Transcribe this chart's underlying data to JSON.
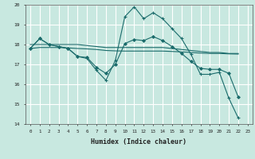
{
  "bg_color": "#c8e8e0",
  "grid_color": "#ffffff",
  "line_color": "#1a6b6b",
  "xlim": [
    -0.5,
    23.5
  ],
  "ylim": [
    14,
    20
  ],
  "xlabel": "Humidex (Indice chaleur)",
  "xticks": [
    0,
    1,
    2,
    3,
    4,
    5,
    6,
    7,
    8,
    9,
    10,
    11,
    12,
    13,
    14,
    15,
    16,
    17,
    18,
    19,
    20,
    21,
    22,
    23
  ],
  "yticks": [
    14,
    15,
    16,
    17,
    18,
    19,
    20
  ],
  "lines": [
    {
      "x": [
        0,
        1,
        2,
        3,
        4,
        5,
        6,
        7,
        8,
        9,
        10,
        11,
        12,
        13,
        14,
        15,
        16,
        17,
        18,
        19,
        20,
        21,
        22
      ],
      "y": [
        17.8,
        18.3,
        18.0,
        17.9,
        17.8,
        17.4,
        17.3,
        16.7,
        16.2,
        17.2,
        19.4,
        19.9,
        19.3,
        19.6,
        19.3,
        18.8,
        18.3,
        17.5,
        16.5,
        16.5,
        16.6,
        15.3,
        14.3
      ],
      "marker": "+"
    },
    {
      "x": [
        0,
        1,
        2,
        3,
        4,
        5,
        6,
        7,
        8,
        9,
        10,
        11,
        12,
        13,
        14,
        15,
        16,
        17,
        18,
        19,
        20,
        21,
        22
      ],
      "y": [
        18.0,
        18.0,
        18.0,
        18.0,
        18.0,
        18.0,
        17.95,
        17.9,
        17.85,
        17.85,
        17.85,
        17.85,
        17.85,
        17.85,
        17.85,
        17.8,
        17.75,
        17.7,
        17.65,
        17.6,
        17.6,
        17.55,
        17.55
      ],
      "marker": null
    },
    {
      "x": [
        0,
        1,
        2,
        3,
        4,
        5,
        6,
        7,
        8,
        9,
        10,
        11,
        12,
        13,
        14,
        15,
        16,
        17,
        18,
        19,
        20,
        21,
        22
      ],
      "y": [
        17.8,
        17.85,
        17.85,
        17.85,
        17.83,
        17.8,
        17.78,
        17.75,
        17.7,
        17.68,
        17.67,
        17.67,
        17.67,
        17.67,
        17.67,
        17.65,
        17.63,
        17.6,
        17.57,
        17.55,
        17.55,
        17.53,
        17.52
      ],
      "marker": null
    },
    {
      "x": [
        0,
        1,
        2,
        3,
        4,
        5,
        6,
        7,
        8,
        9,
        10,
        11,
        12,
        13,
        14,
        15,
        16,
        17,
        18,
        19,
        20,
        21,
        22
      ],
      "y": [
        17.8,
        18.3,
        18.0,
        17.9,
        17.8,
        17.4,
        17.35,
        16.85,
        16.55,
        17.0,
        18.05,
        18.25,
        18.2,
        18.4,
        18.2,
        17.9,
        17.55,
        17.15,
        16.8,
        16.75,
        16.75,
        16.55,
        15.35
      ],
      "marker": "D"
    }
  ]
}
